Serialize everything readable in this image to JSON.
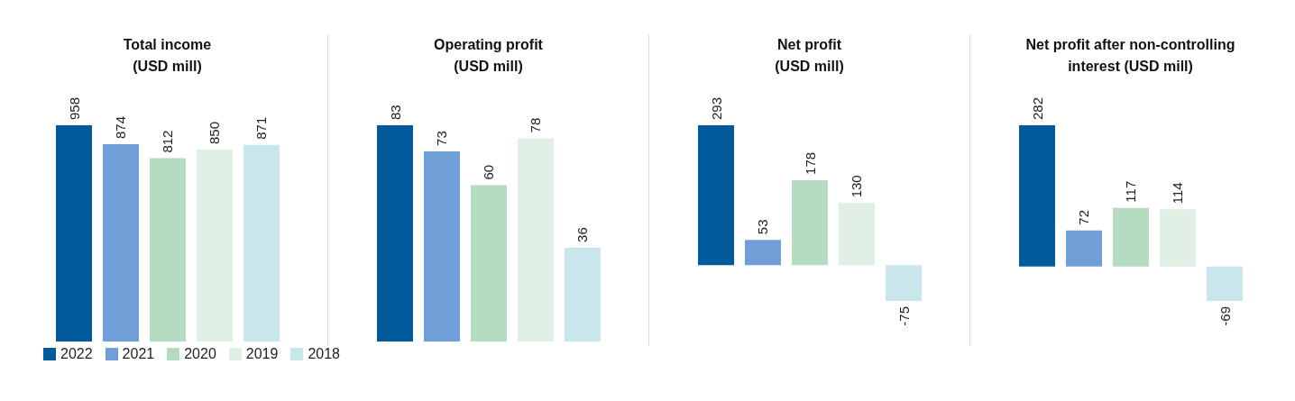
{
  "chart_data": [
    {
      "type": "bar",
      "title": "Total income\n(USD mill)",
      "categories": [
        null
      ],
      "data_labels": true,
      "legend": "bottom",
      "series": [
        {
          "name": "2022",
          "color": "#005a9c",
          "values": [
            958
          ]
        },
        {
          "name": "2021",
          "color": "#6f9fd6",
          "values": [
            874
          ]
        },
        {
          "name": "2020",
          "color": "#b5dcc0",
          "values": [
            812
          ]
        },
        {
          "name": "2019",
          "color": "#e0efe3",
          "values": [
            850
          ]
        },
        {
          "name": "2018",
          "color": "#c9e6ec",
          "values": [
            871
          ]
        }
      ]
    },
    {
      "type": "bar",
      "title": "Operating profit\n(USD mill)",
      "categories": [
        null
      ],
      "data_labels": true,
      "series": [
        {
          "name": "2022",
          "color": "#005a9c",
          "values": [
            83
          ]
        },
        {
          "name": "2021",
          "color": "#6f9fd6",
          "values": [
            73
          ]
        },
        {
          "name": "2020",
          "color": "#b5dcc0",
          "values": [
            60
          ]
        },
        {
          "name": "2019",
          "color": "#e0efe3",
          "values": [
            78
          ]
        },
        {
          "name": "2018",
          "color": "#c9e6ec",
          "values": [
            36
          ]
        }
      ]
    },
    {
      "type": "bar",
      "title": "Net profit\n(USD mill)",
      "categories": [
        null
      ],
      "data_labels": true,
      "series": [
        {
          "name": "2022",
          "color": "#005a9c",
          "values": [
            293
          ]
        },
        {
          "name": "2021",
          "color": "#6f9fd6",
          "values": [
            53
          ]
        },
        {
          "name": "2020",
          "color": "#b5dcc0",
          "values": [
            178
          ]
        },
        {
          "name": "2019",
          "color": "#e0efe3",
          "values": [
            130
          ]
        },
        {
          "name": "2018",
          "color": "#c9e6ec",
          "values": [
            -75
          ]
        }
      ]
    },
    {
      "type": "bar",
      "title": "Net profit after non-controlling\ninterest (USD mill)",
      "categories": [
        null
      ],
      "data_labels": true,
      "series": [
        {
          "name": "2022",
          "color": "#005a9c",
          "values": [
            282
          ]
        },
        {
          "name": "2021",
          "color": "#6f9fd6",
          "values": [
            72
          ]
        },
        {
          "name": "2020",
          "color": "#b5dcc0",
          "values": [
            117
          ]
        },
        {
          "name": "2019",
          "color": "#e0efe3",
          "values": [
            114
          ]
        },
        {
          "name": "2018",
          "color": "#c9e6ec",
          "values": [
            -69
          ]
        }
      ]
    }
  ]
}
